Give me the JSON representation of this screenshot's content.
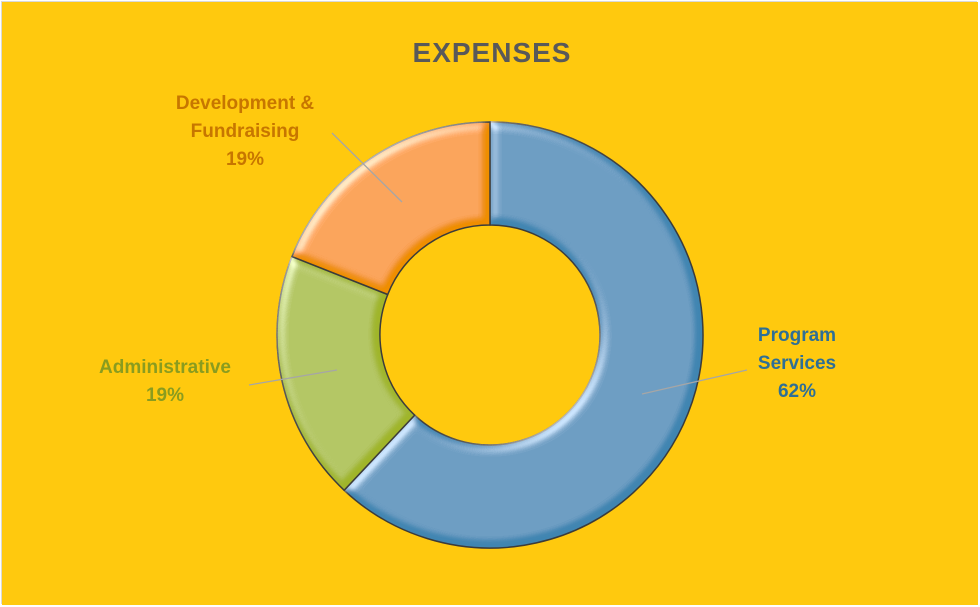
{
  "chart_data": {
    "type": "pie",
    "variant": "doughnut",
    "title": "EXPENSES",
    "slices": [
      {
        "label": "Program Services",
        "label_lines": [
          "Program",
          "Services"
        ],
        "percent_label": "62%",
        "value": 62,
        "color": "#3f85b1"
      },
      {
        "label": "Administrative",
        "label_lines": [
          "Administrative"
        ],
        "percent_label": "19%",
        "value": 19,
        "color": "#a0b52b"
      },
      {
        "label": "Development & Fundraising",
        "label_lines": [
          "Development &",
          "Fundraising"
        ],
        "percent_label": "19%",
        "value": 19,
        "color": "#ef8e00"
      }
    ],
    "legend": "none",
    "background_color": "#ffc90e",
    "title_color": "#595959"
  }
}
